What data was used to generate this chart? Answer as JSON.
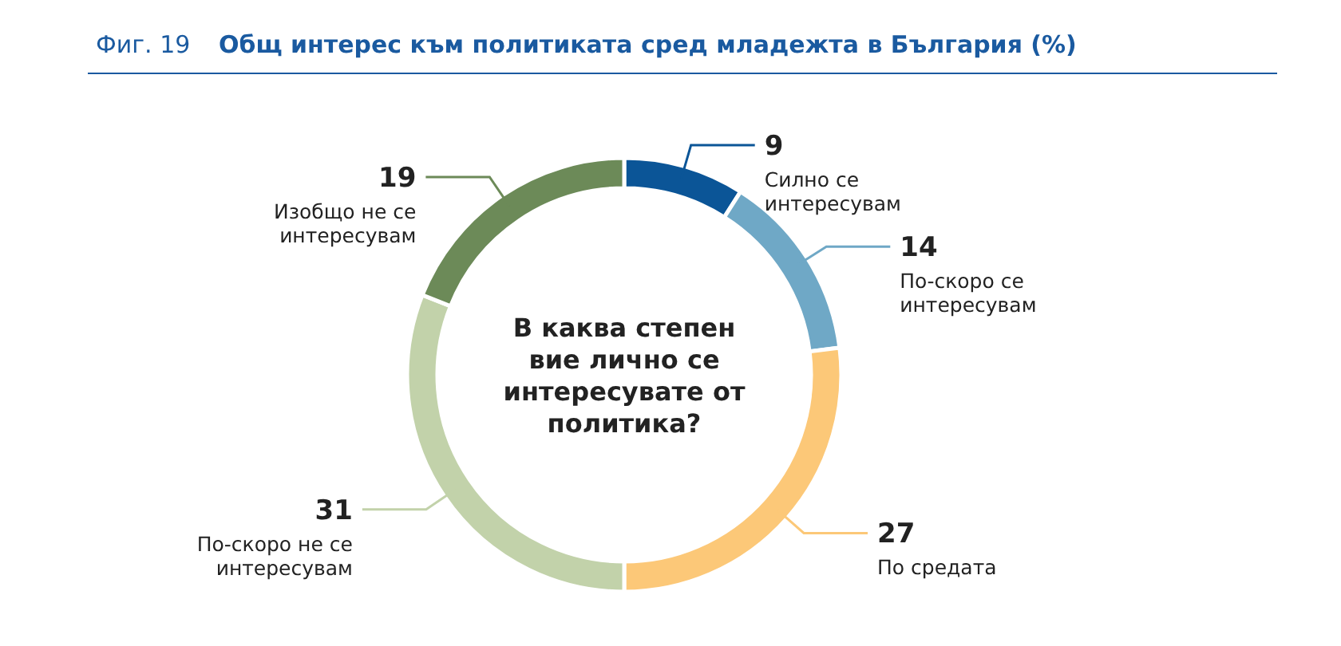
{
  "chart_data": {
    "type": "donut",
    "title": "Общ интерес към политиката сред младежта в България (%)",
    "annotations": [
      "Фиг. 19",
      "В каква степен вие лично се интересувате от политика?"
    ],
    "categories": [
      "Силно се интересувам",
      "По-скоро се интересувам",
      "По средата",
      "По-скоро не се интересувам",
      "Изобщо не се интересувам"
    ],
    "values": [
      9,
      14,
      27,
      31,
      19
    ],
    "colors": [
      "#0b5597",
      "#6fa8c6",
      "#fcc878",
      "#c2d2aa",
      "#6c8a58"
    ],
    "data_labels": true
  }
}
